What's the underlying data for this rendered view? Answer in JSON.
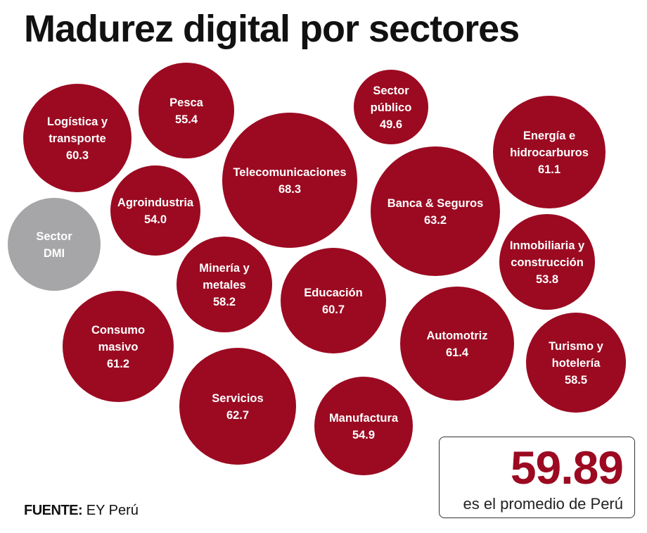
{
  "title": "Madurez digital por sectores",
  "colors": {
    "sector": "#9b0a21",
    "dmi": "#a6a6a8",
    "text": "#ffffff"
  },
  "chart_data": {
    "type": "bubble",
    "title": "Madurez digital por sectores",
    "items": [
      {
        "id": "logistica",
        "label": [
          "Logística y",
          "transporte"
        ],
        "value": 60.3
      },
      {
        "id": "pesca",
        "label": [
          "Pesca"
        ],
        "value": 55.4
      },
      {
        "id": "sector-publico",
        "label": [
          "Sector",
          "público"
        ],
        "value": 49.6
      },
      {
        "id": "telecomunicaciones",
        "label": [
          "Telecomunicaciones"
        ],
        "value": 68.3
      },
      {
        "id": "energia",
        "label": [
          "Energía e",
          "hidrocarburos"
        ],
        "value": 61.1
      },
      {
        "id": "agroindustria",
        "label": [
          "Agroindustria"
        ],
        "value": 54.0
      },
      {
        "id": "banca",
        "label": [
          "Banca & Seguros"
        ],
        "value": 63.2
      },
      {
        "id": "sector-dmi",
        "label": [
          "Sector",
          "DMI"
        ],
        "value": null
      },
      {
        "id": "inmobiliaria",
        "label": [
          "Inmobiliaria y",
          "construcción"
        ],
        "value": 53.8
      },
      {
        "id": "mineria",
        "label": [
          "Minería y",
          "metales"
        ],
        "value": 58.2
      },
      {
        "id": "educacion",
        "label": [
          "Educación"
        ],
        "value": 60.7
      },
      {
        "id": "consumo",
        "label": [
          "Consumo",
          "masivo"
        ],
        "value": 61.2
      },
      {
        "id": "automotriz",
        "label": [
          "Automotriz"
        ],
        "value": 61.4
      },
      {
        "id": "turismo",
        "label": [
          "Turismo y",
          "hotelería"
        ],
        "value": 58.5
      },
      {
        "id": "servicios",
        "label": [
          "Servicios"
        ],
        "value": 62.7
      },
      {
        "id": "manufactura",
        "label": [
          "Manufactura"
        ],
        "value": 54.9
      }
    ]
  },
  "average": {
    "value": "59.89",
    "caption": "es el promedio de Perú"
  },
  "source": {
    "label": "FUENTE:",
    "text": "EY Perú"
  }
}
